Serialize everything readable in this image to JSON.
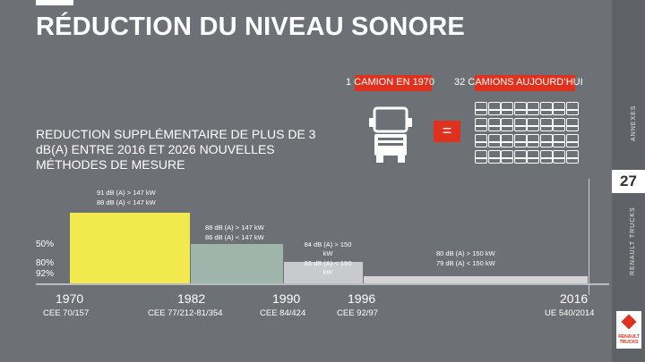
{
  "header": {
    "title": "RÉDUCTION DU NIVEAU SONORE"
  },
  "sidebar": {
    "annexes": "ANNEXES",
    "page_number": "27",
    "brand_vertical": "RENAULT TRUCKS",
    "logo_text": "RENAULT TRUCKS"
  },
  "comparison": {
    "label_1970": "1 CAMION EN 1970",
    "label_today": "32 CAMIONS AUJOURD’HUI",
    "equals": "=",
    "mini_truck_count": 32
  },
  "subtitle": "REDUCTION SUPPLÉMENTAIRE DE PLUS DE 3 dB(A) ENTRE 2016 ET 2026 NOUVELLES MÉTHODES DE MESURE",
  "chart": {
    "note_1970_a": "91 dB (A) > 147 kW",
    "note_1970_b": "88 dB (A) < 147 kW",
    "note_1982_a": "88 dB (A) > 147 kW",
    "note_1982_b": "86 dB (A) < 147 kW",
    "note_1990_a": "84 dB (A) > 150",
    "note_1990_b": "kW",
    "note_1990_c": "83 dB (A) < 150",
    "note_1990_d": "kW",
    "note_2016_a": "80 dB (A) > 150 kW",
    "note_2016_b": "79 dB (A) < 150 kW",
    "pct_50": "50%",
    "pct_80": "80%",
    "pct_92": "92%"
  },
  "timeline": [
    {
      "year": "1970",
      "reg": "CEE 70/157"
    },
    {
      "year": "1982",
      "reg": "CEE 77/212-81/354"
    },
    {
      "year": "1990",
      "reg": "CEE 84/424"
    },
    {
      "year": "1996",
      "reg": "CEE 92/97"
    },
    {
      "year": "2016",
      "reg": "UE 540/2014"
    }
  ],
  "colors": {
    "yellow": "#f2e94e",
    "green": "#9fb5ac",
    "grey1": "#c8cacb",
    "grey2": "#d2d4d5",
    "red": "#e0301e",
    "background": "#6d7074"
  }
}
